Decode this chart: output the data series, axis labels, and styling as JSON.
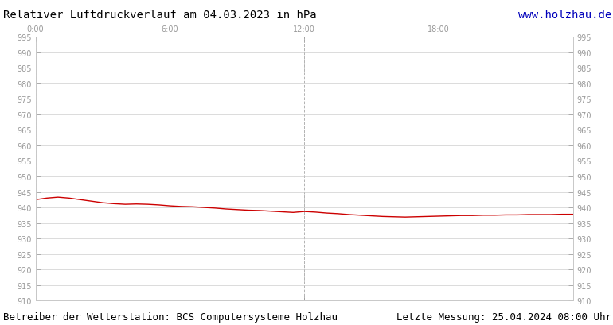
{
  "title_left": "Relativer Luftdruckverlauf am 04.03.2023 in hPa",
  "title_right": "www.holzhau.de",
  "footer_left": "Betreiber der Wetterstation: BCS Computersysteme Holzhau",
  "footer_right": "Letzte Messung: 25.04.2024 08:00 Uhr",
  "ylim": [
    910,
    995
  ],
  "ytick_step": 5,
  "xtick_labels": [
    "0:00",
    "6:00",
    "12:00",
    "18:00"
  ],
  "xtick_positions": [
    0,
    6,
    12,
    18
  ],
  "xlim": [
    0,
    24
  ],
  "line_color": "#cc0000",
  "line_width": 1.0,
  "background_color": "#ffffff",
  "plot_bg_color": "#ffffff",
  "grid_color_h": "#c8c8c8",
  "grid_color_v": "#aaaaaa",
  "tick_color": "#999999",
  "title_fontsize": 10,
  "footer_fontsize": 9,
  "pressure_x": [
    0,
    0.5,
    1,
    1.5,
    2,
    2.5,
    3,
    3.5,
    4,
    4.5,
    5,
    5.5,
    6,
    6.5,
    7,
    7.5,
    8,
    8.5,
    9,
    9.5,
    10,
    10.5,
    11,
    11.5,
    12,
    12.5,
    13,
    13.5,
    14,
    14.5,
    15,
    15.5,
    16,
    16.5,
    17,
    17.5,
    18,
    18.5,
    19,
    19.5,
    20,
    20.5,
    21,
    21.5,
    22,
    22.5,
    23,
    23.5,
    24
  ],
  "pressure_y": [
    942.5,
    943.0,
    943.3,
    943.0,
    942.5,
    942.0,
    941.5,
    941.2,
    941.0,
    941.1,
    941.0,
    940.8,
    940.5,
    940.3,
    940.2,
    940.0,
    939.8,
    939.5,
    939.3,
    939.1,
    939.0,
    938.8,
    938.6,
    938.4,
    938.7,
    938.5,
    938.2,
    938.0,
    937.7,
    937.5,
    937.3,
    937.1,
    937.0,
    936.9,
    937.0,
    937.1,
    937.2,
    937.3,
    937.4,
    937.4,
    937.5,
    937.5,
    937.6,
    937.6,
    937.7,
    937.7,
    937.7,
    937.8,
    937.8
  ]
}
